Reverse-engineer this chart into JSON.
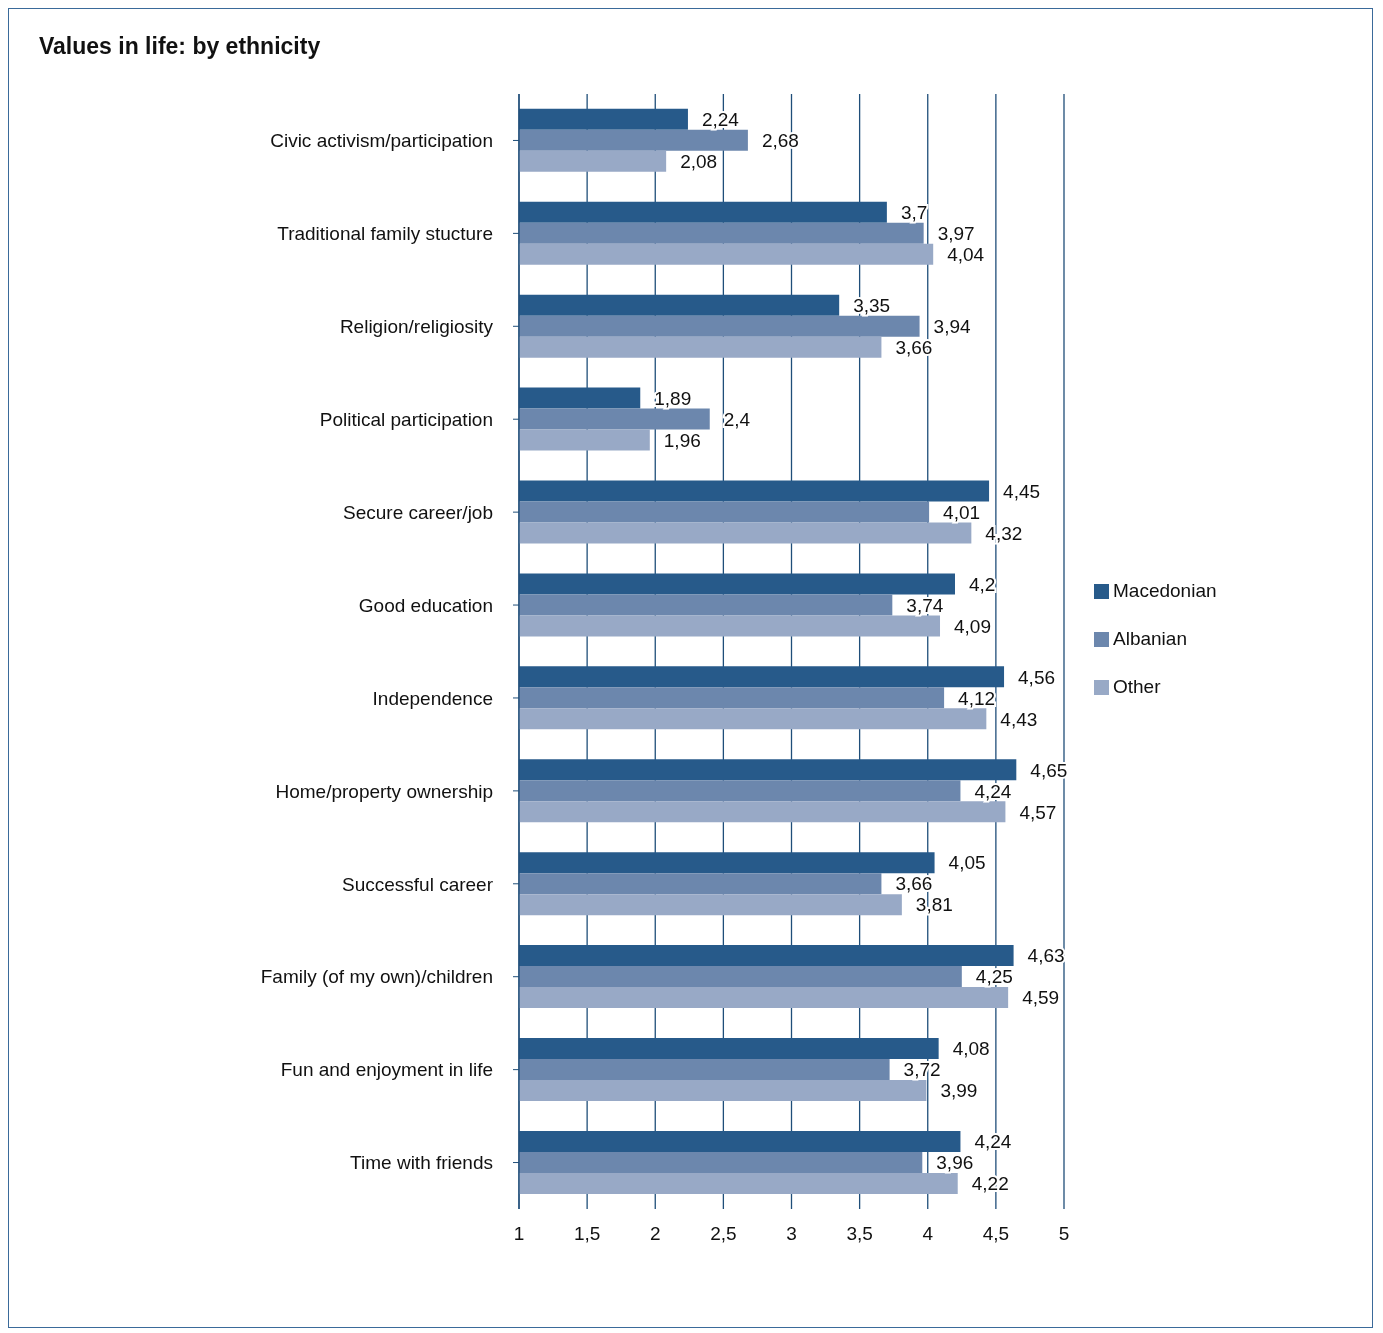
{
  "chart_data": {
    "type": "bar",
    "orientation": "horizontal",
    "title": "Values in life: by ethnicity",
    "categories": [
      "Civic activism/participation",
      "Traditional family stucture",
      "Religion/religiosity",
      "Political participation",
      "Secure career/job",
      "Good education",
      "Independence",
      "Home/property ownership",
      "Successful career",
      "Family (of my own)/children",
      "Fun and enjoyment in life",
      "Time with friends"
    ],
    "series": [
      {
        "name": "Macedonian",
        "color": "#275a8a",
        "values": [
          2.24,
          3.7,
          3.35,
          1.89,
          4.45,
          4.2,
          4.56,
          4.65,
          4.05,
          4.63,
          4.08,
          4.24
        ],
        "value_labels": [
          "2,24",
          "3,7",
          "3,35",
          "1,89",
          "4,45",
          "4,2",
          "4,56",
          "4,65",
          "4,05",
          "4,63",
          "4,08",
          "4,24"
        ]
      },
      {
        "name": "Albanian",
        "color": "#6c87ad",
        "values": [
          2.68,
          3.97,
          3.94,
          2.4,
          4.01,
          3.74,
          4.12,
          4.24,
          3.66,
          4.25,
          3.72,
          3.96
        ],
        "value_labels": [
          "2,68",
          "3,97",
          "3,94",
          "2,4",
          "4,01",
          "3,74",
          "4,12",
          "4,24",
          "3,66",
          "4,25",
          "3,72",
          "3,96"
        ]
      },
      {
        "name": "Other",
        "color": "#98a9c6",
        "values": [
          2.08,
          4.04,
          3.66,
          1.96,
          4.32,
          4.09,
          4.43,
          4.57,
          3.81,
          4.59,
          3.99,
          4.22
        ],
        "value_labels": [
          "2,08",
          "4,04",
          "3,66",
          "1,96",
          "4,32",
          "4,09",
          "4,43",
          "4,57",
          "3,81",
          "4,59",
          "3,99",
          "4,22"
        ]
      }
    ],
    "xlim": [
      1,
      5
    ],
    "xticks": [
      1,
      {
        "value": 1.5,
        "label": "1,5"
      },
      2,
      {
        "value": 2.5,
        "label": "2,5"
      },
      3,
      {
        "value": 3.5,
        "label": "3,5"
      },
      4,
      {
        "value": 4.5,
        "label": "4,5"
      },
      5
    ],
    "grid": "x",
    "legend": "right"
  }
}
